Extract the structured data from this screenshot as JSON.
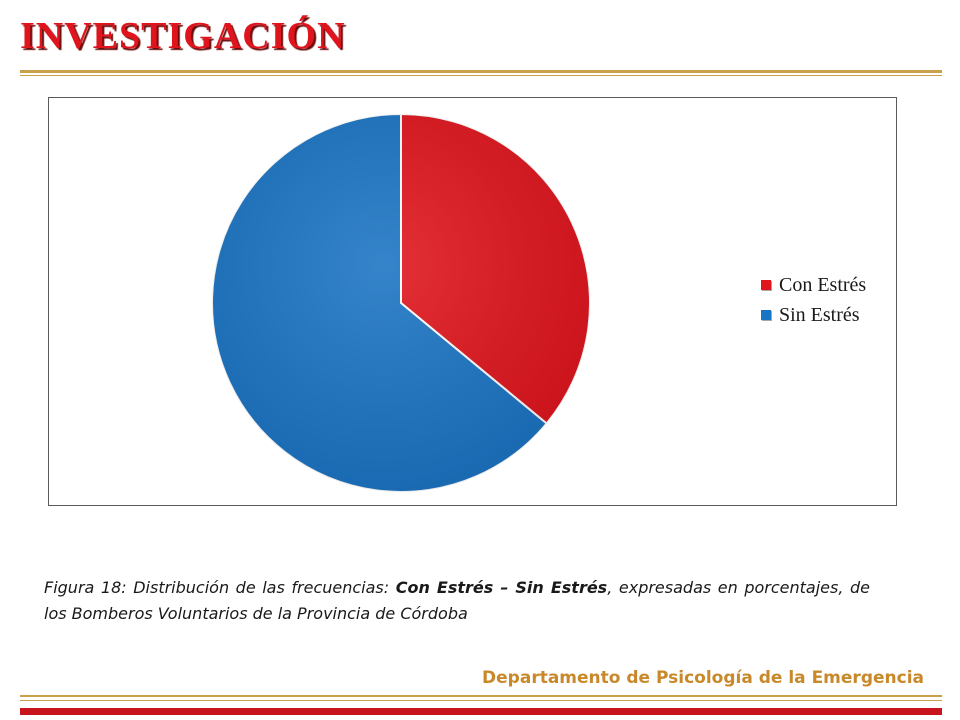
{
  "slide": {
    "title": "INVESTIGACIÓN",
    "caption": {
      "prefix": "Figura 18: Distribución de las frecuencias: ",
      "bold_phrase": "Con Estrés – Sin Estrés",
      "suffix": ", expresadas en porcentajes, de los Bomberos Voluntarios  de la Provincia de Córdoba"
    },
    "footer": "Departamento de Psicología de la Emergencia"
  },
  "colors": {
    "title": "#e0141c",
    "con_estres": "#e0141c",
    "sin_estres": "#1a74c4",
    "gold_rule": "#c8a14a",
    "footer": "#c9892b"
  },
  "chart_data": {
    "type": "pie",
    "categories": [
      "Con Estrés",
      "Sin Estrés"
    ],
    "values": [
      36,
      64
    ],
    "legend_position": "right"
  }
}
